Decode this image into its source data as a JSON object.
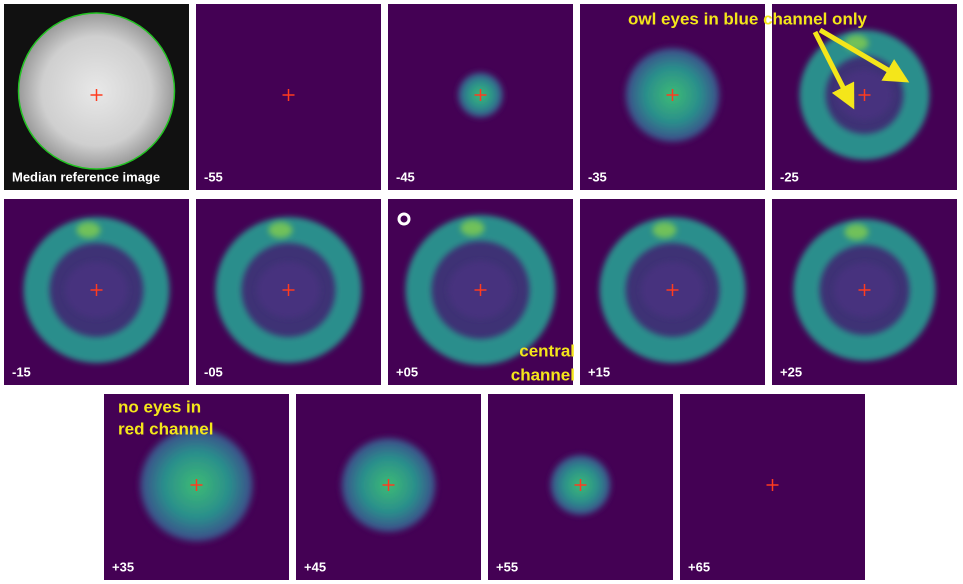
{
  "panels": [
    {
      "label": "Median reference image"
    },
    {
      "label": "-55"
    },
    {
      "label": "-45"
    },
    {
      "label": "-35"
    },
    {
      "label": "-25"
    },
    {
      "label": "-15"
    },
    {
      "label": "-05"
    },
    {
      "label": "+05"
    },
    {
      "label": "+15"
    },
    {
      "label": "+25"
    },
    {
      "label": "+35"
    },
    {
      "label": "+45"
    },
    {
      "label": "+55"
    },
    {
      "label": "+65"
    }
  ],
  "annotations": {
    "blue_channel": "owl eyes in blue channel only",
    "central_channel": [
      "central",
      "channel"
    ],
    "red_channel": [
      "no eyes in",
      "red channel"
    ]
  }
}
